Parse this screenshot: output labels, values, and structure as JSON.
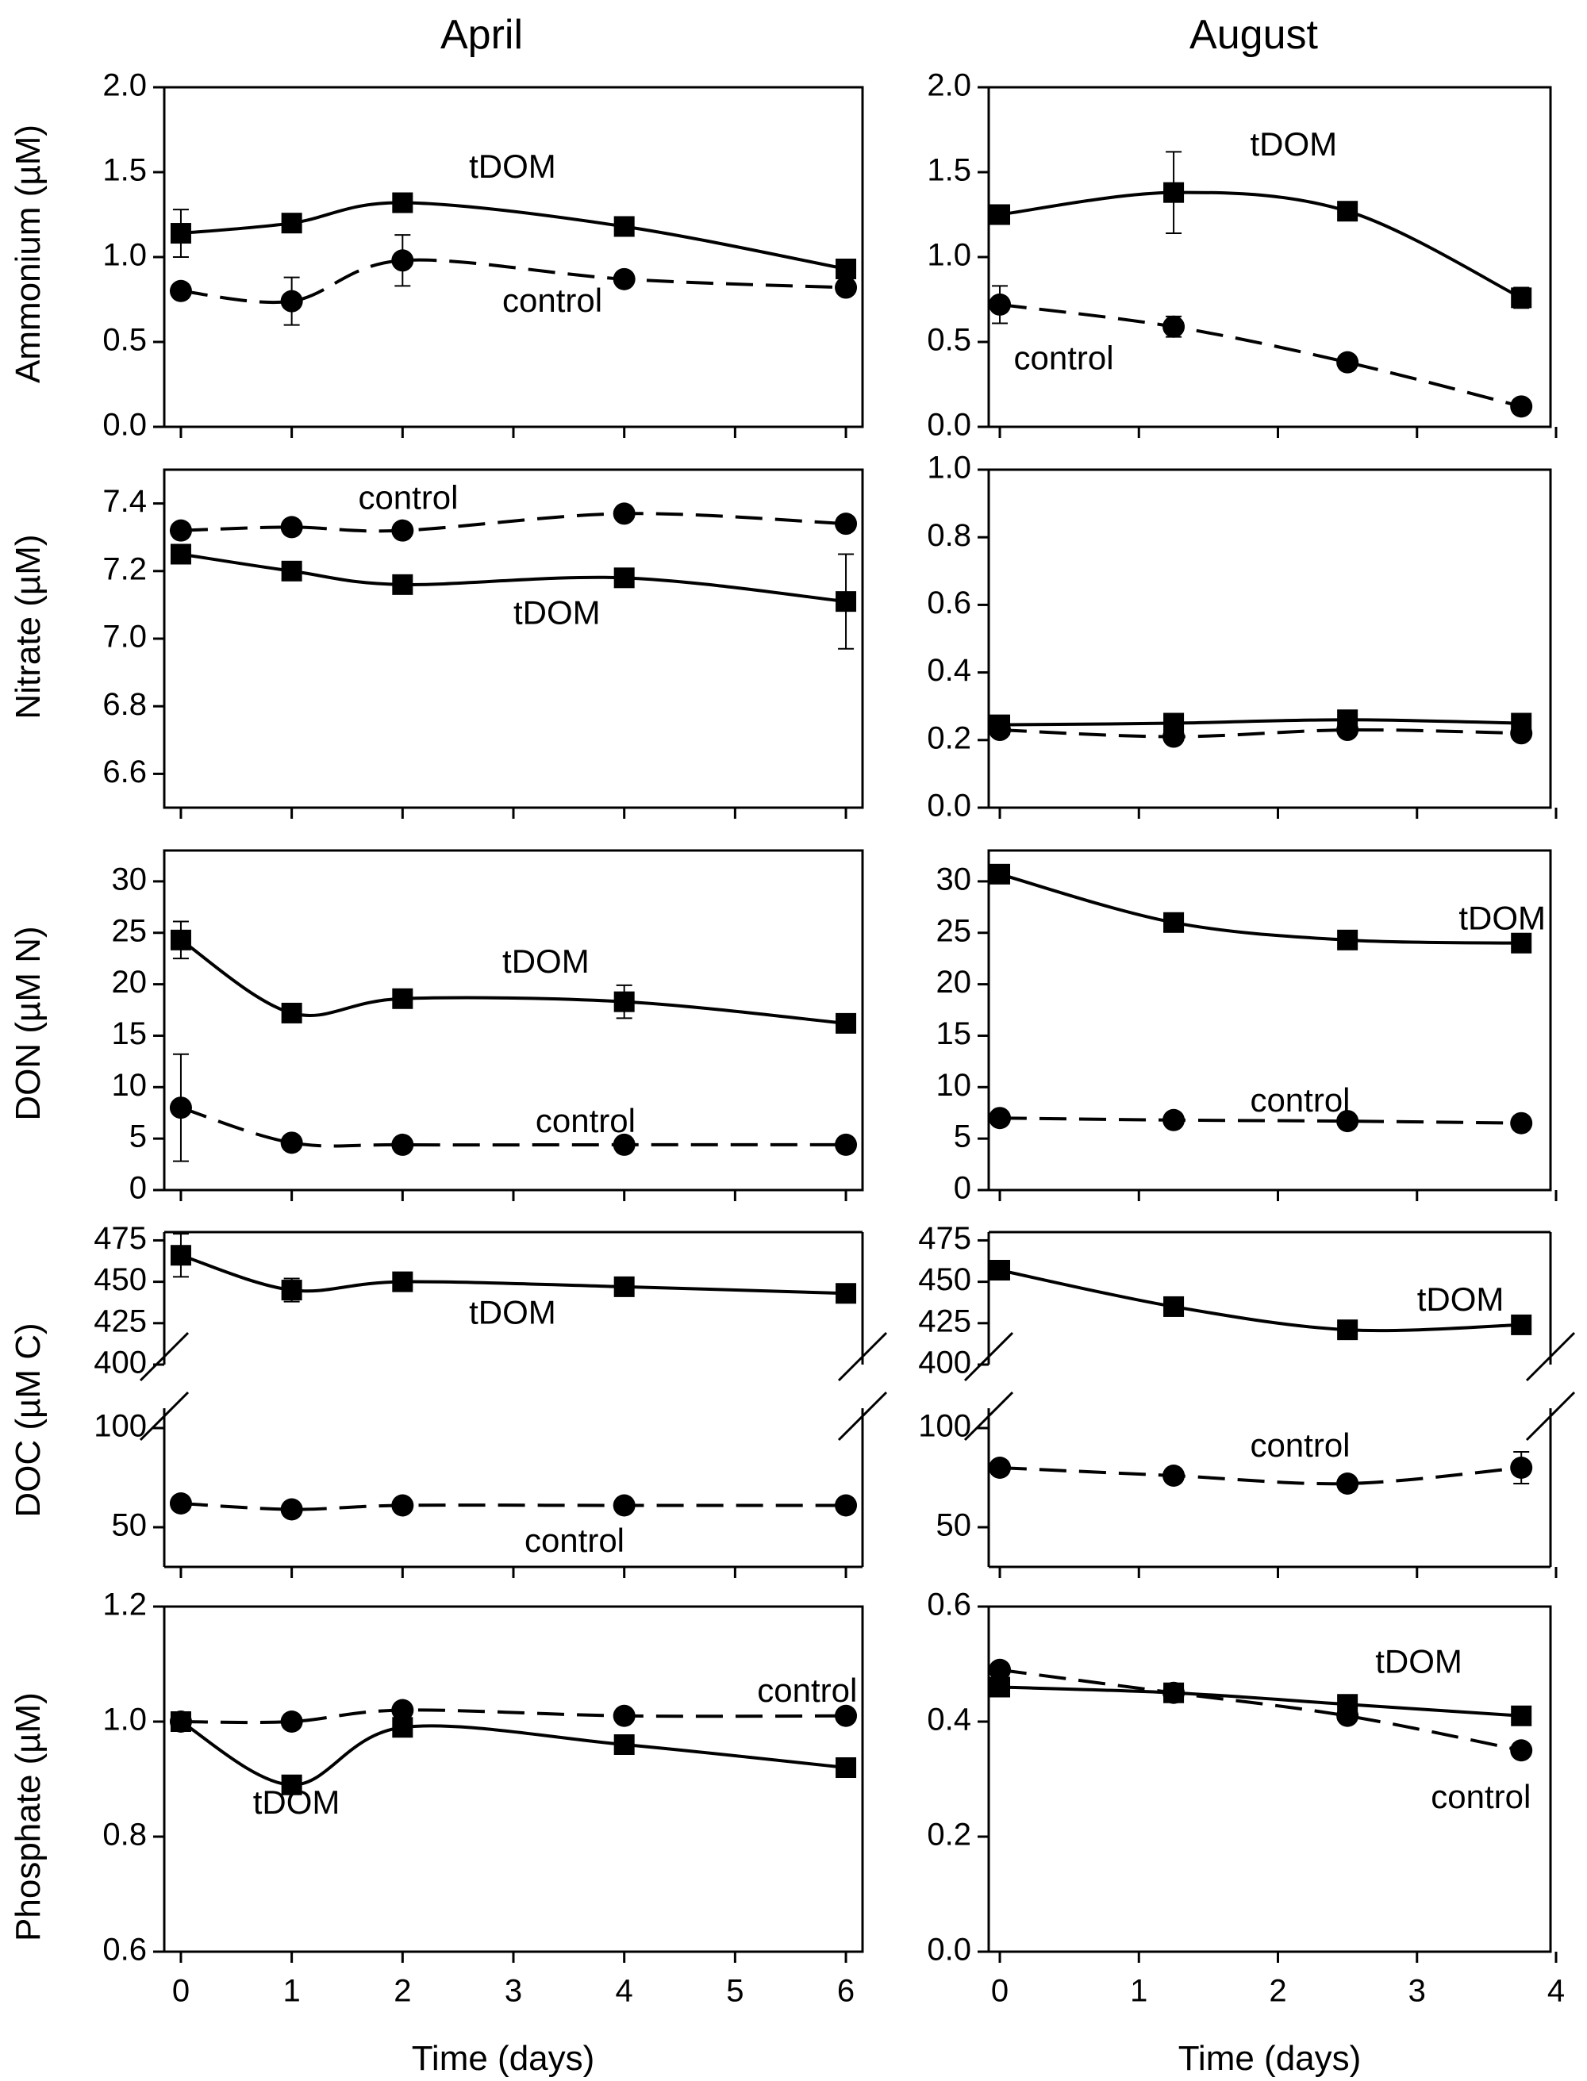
{
  "column_titles": [
    "April",
    "August"
  ],
  "x_axis_label": "Time (days)",
  "colors": {
    "line": "#000000",
    "background": "#ffffff"
  },
  "chart_data": [
    {
      "id": "ammonium-april",
      "type": "line",
      "ylabel": "Ammonium (µM)",
      "xlim": [
        -0.15,
        6.15
      ],
      "ylim": [
        0,
        2.0
      ],
      "yticks": [
        0.0,
        0.5,
        1.0,
        1.5,
        2.0
      ],
      "ytick_labels": [
        "0.0",
        "0.5",
        "1.0",
        "1.5",
        "2.0"
      ],
      "xticks": [
        0,
        1,
        2,
        3,
        4,
        5,
        6
      ],
      "xtick_labels": [],
      "series": [
        {
          "name": "tDOM",
          "style": "solid",
          "marker": "square",
          "x": [
            0,
            1,
            2,
            4,
            6
          ],
          "values": [
            1.14,
            1.2,
            1.32,
            1.18,
            0.93
          ],
          "errors": [
            0.14,
            0.03,
            0.02,
            0.02,
            0.02
          ]
        },
        {
          "name": "control",
          "style": "dashed",
          "marker": "circle",
          "x": [
            0,
            1,
            2,
            4,
            6
          ],
          "values": [
            0.8,
            0.74,
            0.98,
            0.87,
            0.82
          ],
          "errors": [
            0.03,
            0.14,
            0.15,
            0.02,
            0.02
          ]
        }
      ],
      "annotations": [
        {
          "text": "tDOM",
          "x": 2.6,
          "y": 1.52
        },
        {
          "text": "control",
          "x": 2.9,
          "y": 0.73
        }
      ]
    },
    {
      "id": "nitrate-april",
      "type": "line",
      "ylabel": "Nitrate (µM)",
      "xlim": [
        -0.15,
        6.15
      ],
      "ylim": [
        6.5,
        7.5
      ],
      "yticks": [
        6.6,
        6.8,
        7.0,
        7.2,
        7.4
      ],
      "ytick_labels": [
        "6.6",
        "6.8",
        "7.0",
        "7.2",
        "7.4"
      ],
      "xticks": [
        0,
        1,
        2,
        3,
        4,
        5,
        6
      ],
      "xtick_labels": [],
      "series": [
        {
          "name": "control",
          "style": "dashed",
          "marker": "circle",
          "x": [
            0,
            1,
            2,
            4,
            6
          ],
          "values": [
            7.32,
            7.33,
            7.32,
            7.37,
            7.34
          ],
          "errors": [
            0.01,
            0.01,
            0.01,
            0.01,
            0.01
          ]
        },
        {
          "name": "tDOM",
          "style": "solid",
          "marker": "square",
          "x": [
            0,
            1,
            2,
            4,
            6
          ],
          "values": [
            7.25,
            7.2,
            7.16,
            7.18,
            7.11
          ],
          "errors": [
            0.01,
            0.01,
            0.01,
            0.01,
            0.14
          ]
        }
      ],
      "annotations": [
        {
          "text": "control",
          "x": 1.6,
          "y": 7.41
        },
        {
          "text": "tDOM",
          "x": 3.0,
          "y": 7.07
        }
      ]
    },
    {
      "id": "don-april",
      "type": "line",
      "ylabel": "DON (µM N)",
      "xlim": [
        -0.15,
        6.15
      ],
      "ylim": [
        0,
        33
      ],
      "yticks": [
        0,
        5,
        10,
        15,
        20,
        25,
        30
      ],
      "ytick_labels": [
        "0",
        "5",
        "10",
        "15",
        "20",
        "25",
        "30"
      ],
      "xticks": [
        0,
        1,
        2,
        3,
        4,
        5,
        6
      ],
      "xtick_labels": [],
      "series": [
        {
          "name": "tDOM",
          "style": "solid",
          "marker": "square",
          "x": [
            0,
            1,
            2,
            4,
            6
          ],
          "values": [
            24.3,
            17.2,
            18.6,
            18.3,
            16.2
          ],
          "errors": [
            1.8,
            0.3,
            0.3,
            1.6,
            0.3
          ]
        },
        {
          "name": "control",
          "style": "dashed",
          "marker": "circle",
          "x": [
            0,
            1,
            2,
            4,
            6
          ],
          "values": [
            8.0,
            4.6,
            4.4,
            4.4,
            4.4
          ],
          "errors": [
            5.2,
            0.2,
            0.2,
            0.2,
            0.2
          ]
        }
      ],
      "annotations": [
        {
          "text": "tDOM",
          "x": 2.9,
          "y": 22.0
        },
        {
          "text": "control",
          "x": 3.2,
          "y": 6.5
        }
      ]
    },
    {
      "id": "doc-april",
      "type": "line",
      "ylabel": "DOC (µM C)",
      "broken_axis": true,
      "xlim": [
        -0.15,
        6.15
      ],
      "ylim_upper": [
        400,
        480
      ],
      "ylim_lower": [
        30,
        110
      ],
      "yticks_upper": [
        400,
        425,
        450,
        475
      ],
      "ytick_labels_upper": [
        "400",
        "425",
        "450",
        "475"
      ],
      "yticks_lower": [
        50,
        100
      ],
      "ytick_labels_lower": [
        "50",
        "100"
      ],
      "xticks": [
        0,
        1,
        2,
        3,
        4,
        5,
        6
      ],
      "xtick_labels": [],
      "series": [
        {
          "name": "tDOM",
          "style": "solid",
          "marker": "square",
          "segment": "upper",
          "x": [
            0,
            1,
            2,
            4,
            6
          ],
          "values": [
            466,
            445,
            450,
            447,
            443
          ],
          "errors": [
            13,
            7,
            3,
            3,
            3
          ]
        },
        {
          "name": "control",
          "style": "dashed",
          "marker": "circle",
          "segment": "lower",
          "x": [
            0,
            1,
            2,
            4,
            6
          ],
          "values": [
            62,
            59,
            61,
            61,
            61
          ],
          "errors": [
            1,
            1,
            1,
            1,
            1
          ]
        }
      ],
      "annotations": [
        {
          "text": "tDOM",
          "x": 2.6,
          "y": 430,
          "segment": "upper"
        },
        {
          "text": "control",
          "x": 3.1,
          "y": 42,
          "segment": "lower"
        }
      ]
    },
    {
      "id": "phosphate-april",
      "type": "line",
      "ylabel": "Phosphate (µM)",
      "xlim": [
        -0.15,
        6.15
      ],
      "ylim": [
        0.6,
        1.2
      ],
      "yticks": [
        0.6,
        0.8,
        1.0,
        1.2
      ],
      "ytick_labels": [
        "0.6",
        "0.8",
        "1.0",
        "1.2"
      ],
      "xticks": [
        0,
        1,
        2,
        3,
        4,
        5,
        6
      ],
      "xtick_labels": [
        "0",
        "1",
        "2",
        "3",
        "4",
        "5",
        "6"
      ],
      "series": [
        {
          "name": "control",
          "style": "dashed",
          "marker": "circle",
          "x": [
            0,
            1,
            2,
            4,
            6
          ],
          "values": [
            1.0,
            1.0,
            1.02,
            1.01,
            1.01
          ],
          "errors": [
            0.005,
            0.005,
            0.005,
            0.005,
            0.005
          ]
        },
        {
          "name": "tDOM",
          "style": "solid",
          "marker": "square",
          "x": [
            0,
            1,
            2,
            4,
            6
          ],
          "values": [
            1.0,
            0.89,
            0.99,
            0.96,
            0.92
          ],
          "errors": [
            0.005,
            0.005,
            0.005,
            0.005,
            0.005
          ]
        }
      ],
      "annotations": [
        {
          "text": "control",
          "x": 5.2,
          "y": 1.05
        },
        {
          "text": "tDOM",
          "x": 0.65,
          "y": 0.855
        }
      ]
    },
    {
      "id": "ammonium-august",
      "type": "line",
      "ylabel": "",
      "xlim": [
        -0.08,
        3.96
      ],
      "ylim": [
        0,
        2.0
      ],
      "yticks": [
        0.0,
        0.5,
        1.0,
        1.5,
        2.0
      ],
      "ytick_labels": [
        "0.0",
        "0.5",
        "1.0",
        "1.5",
        "2.0"
      ],
      "xticks": [
        0,
        1,
        2,
        3,
        4
      ],
      "xtick_labels": [],
      "series": [
        {
          "name": "tDOM",
          "style": "solid",
          "marker": "square",
          "x": [
            0.0,
            1.25,
            2.5,
            3.75
          ],
          "values": [
            1.25,
            1.38,
            1.27,
            0.76
          ],
          "errors": [
            0.03,
            0.24,
            0.02,
            0.06
          ]
        },
        {
          "name": "control",
          "style": "dashed",
          "marker": "circle",
          "x": [
            0.0,
            1.25,
            2.5,
            3.75
          ],
          "values": [
            0.72,
            0.59,
            0.38,
            0.12
          ],
          "errors": [
            0.11,
            0.06,
            0.04,
            0.02
          ]
        }
      ],
      "annotations": [
        {
          "text": "tDOM",
          "x": 1.8,
          "y": 1.65
        },
        {
          "text": "control",
          "x": 0.1,
          "y": 0.39
        }
      ]
    },
    {
      "id": "nitrate-august",
      "type": "line",
      "ylabel": "",
      "xlim": [
        -0.08,
        3.96
      ],
      "ylim": [
        0,
        1.0
      ],
      "yticks": [
        0.0,
        0.2,
        0.4,
        0.6,
        0.8,
        1.0
      ],
      "ytick_labels": [
        "0.0",
        "0.2",
        "0.4",
        "0.6",
        "0.8",
        "1.0"
      ],
      "xticks": [
        0,
        1,
        2,
        3,
        4
      ],
      "xtick_labels": [],
      "series": [
        {
          "name": "tDOM",
          "style": "solid",
          "marker": "square",
          "x": [
            0.0,
            1.25,
            2.5,
            3.75
          ],
          "values": [
            0.245,
            0.25,
            0.26,
            0.25
          ],
          "errors": [
            0.005,
            0.005,
            0.005,
            0.005
          ]
        },
        {
          "name": "control",
          "style": "dashed",
          "marker": "circle",
          "x": [
            0.0,
            1.25,
            2.5,
            3.75
          ],
          "values": [
            0.23,
            0.21,
            0.23,
            0.22
          ],
          "errors": [
            0.005,
            0.005,
            0.005,
            0.005
          ]
        }
      ],
      "annotations": []
    },
    {
      "id": "don-august",
      "type": "line",
      "ylabel": "",
      "xlim": [
        -0.08,
        3.96
      ],
      "ylim": [
        0,
        33
      ],
      "yticks": [
        0,
        5,
        10,
        15,
        20,
        25,
        30
      ],
      "ytick_labels": [
        "0",
        "5",
        "10",
        "15",
        "20",
        "25",
        "30"
      ],
      "xticks": [
        0,
        1,
        2,
        3,
        4
      ],
      "xtick_labels": [],
      "series": [
        {
          "name": "tDOM",
          "style": "solid",
          "marker": "square",
          "x": [
            0.0,
            1.25,
            2.5,
            3.75
          ],
          "values": [
            30.7,
            26.0,
            24.3,
            24.0
          ],
          "errors": [
            0.3,
            0.8,
            0.5,
            0.3
          ]
        },
        {
          "name": "control",
          "style": "dashed",
          "marker": "circle",
          "x": [
            0.0,
            1.25,
            2.5,
            3.75
          ],
          "values": [
            7.0,
            6.8,
            6.7,
            6.5
          ],
          "errors": [
            0.3,
            0.3,
            0.3,
            0.3
          ]
        }
      ],
      "annotations": [
        {
          "text": "tDOM",
          "x": 3.3,
          "y": 26.2
        },
        {
          "text": "control",
          "x": 1.8,
          "y": 8.5
        }
      ]
    },
    {
      "id": "doc-august",
      "type": "line",
      "ylabel": "",
      "broken_axis": true,
      "xlim": [
        -0.08,
        3.96
      ],
      "ylim_upper": [
        400,
        480
      ],
      "ylim_lower": [
        30,
        110
      ],
      "yticks_upper": [
        400,
        425,
        450,
        475
      ],
      "ytick_labels_upper": [
        "400",
        "425",
        "450",
        "475"
      ],
      "yticks_lower": [
        50,
        100
      ],
      "ytick_labels_lower": [
        "50",
        "100"
      ],
      "xticks": [
        0,
        1,
        2,
        3,
        4
      ],
      "xtick_labels": [],
      "series": [
        {
          "name": "tDOM",
          "style": "solid",
          "marker": "square",
          "segment": "upper",
          "x": [
            0.0,
            1.25,
            2.5,
            3.75
          ],
          "values": [
            457,
            435,
            421,
            424
          ],
          "errors": [
            2,
            3,
            4,
            3
          ]
        },
        {
          "name": "control",
          "style": "dashed",
          "marker": "circle",
          "segment": "lower",
          "x": [
            0.0,
            1.25,
            2.5,
            3.75
          ],
          "values": [
            80,
            76,
            72,
            80
          ],
          "errors": [
            1,
            2,
            2,
            8
          ]
        }
      ],
      "annotations": [
        {
          "text": "tDOM",
          "x": 3.0,
          "y": 438,
          "segment": "upper"
        },
        {
          "text": "control",
          "x": 1.8,
          "y": 90,
          "segment": "lower"
        }
      ]
    },
    {
      "id": "phosphate-august",
      "type": "line",
      "ylabel": "",
      "xlim": [
        -0.08,
        3.96
      ],
      "ylim": [
        0,
        0.6
      ],
      "yticks": [
        0.0,
        0.2,
        0.4,
        0.6
      ],
      "ytick_labels": [
        "0.0",
        "0.2",
        "0.4",
        "0.6"
      ],
      "xticks": [
        0,
        1,
        2,
        3,
        4
      ],
      "xtick_labels": [
        "0",
        "1",
        "2",
        "3",
        "4"
      ],
      "series": [
        {
          "name": "control",
          "style": "dashed",
          "marker": "circle",
          "x": [
            0.0,
            1.25,
            2.5,
            3.75
          ],
          "values": [
            0.49,
            0.45,
            0.41,
            0.35
          ],
          "errors": [
            0.005,
            0.005,
            0.005,
            0.012
          ]
        },
        {
          "name": "tDOM",
          "style": "solid",
          "marker": "square",
          "x": [
            0.0,
            1.25,
            2.5,
            3.75
          ],
          "values": [
            0.46,
            0.45,
            0.43,
            0.41
          ],
          "errors": [
            0.014,
            0.01,
            0.007,
            0.005
          ]
        }
      ],
      "annotations": [
        {
          "text": "tDOM",
          "x": 2.7,
          "y": 0.5
        },
        {
          "text": "control",
          "x": 3.1,
          "y": 0.265
        }
      ]
    }
  ]
}
